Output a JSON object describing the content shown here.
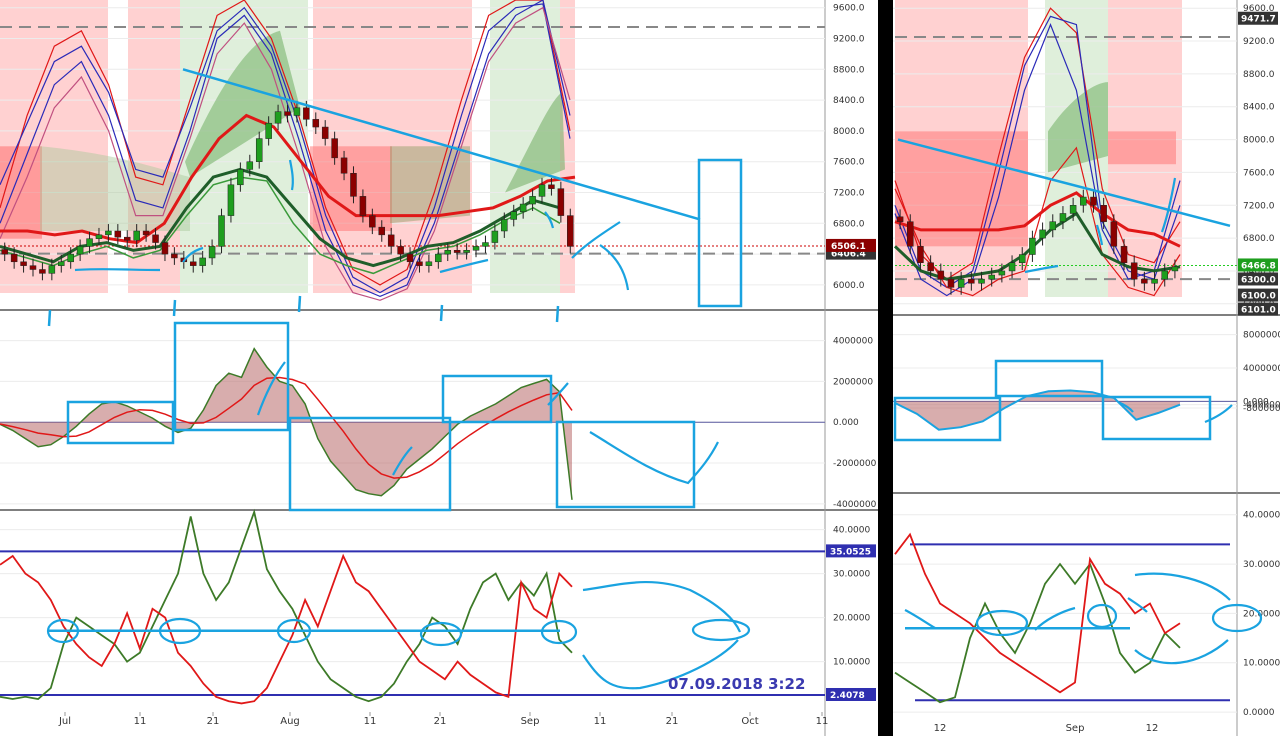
{
  "colors": {
    "background": "#ffffff",
    "separator": "#000000",
    "bull_candle": "#1e9e1e",
    "bear_candle": "#8b0000",
    "ema_red": "#e01818",
    "ema_blue": "#2a2ab8",
    "kijun_dark": "#1f5e2a",
    "annotation": "#1aa3e0",
    "zone_red": "#ff9a9a",
    "zone_green": "#b9dcb0",
    "level_blue": "#2f2fb0",
    "dmi_green": "#3d7a28",
    "dmi_red": "#e01818",
    "osc_fill": "#b86a6a",
    "timestamp_text": "#3a3ab0"
  },
  "annotation_text": "07.09.2018   3:22",
  "chart_data": [
    {
      "id": "left-price",
      "type": "candlestick",
      "ylim": [
        5700,
        9700
      ],
      "y_ticks": [
        "9600.0",
        "9200.0",
        "8800.0",
        "8400.0",
        "8000.0",
        "7600.0",
        "7200.0",
        "6800.0",
        "6400.0",
        "6000.0"
      ],
      "price_tags": [
        {
          "label": "6406.4",
          "bg": "#333333"
        },
        {
          "label": "6506.1",
          "bg": "#8b0000"
        }
      ],
      "candles_close": [
        6400,
        6300,
        6250,
        6200,
        6150,
        6250,
        6300,
        6400,
        6500,
        6600,
        6650,
        6700,
        6620,
        6580,
        6700,
        6650,
        6550,
        6400,
        6350,
        6300,
        6250,
        6350,
        6500,
        6900,
        7300,
        7500,
        7600,
        7900,
        8100,
        8250,
        8200,
        8300,
        8150,
        8050,
        7900,
        7650,
        7450,
        7150,
        6900,
        6750,
        6650,
        6500,
        6400,
        6300,
        6250,
        6300,
        6400,
        6450,
        6420,
        6450,
        6500,
        6550,
        6700,
        6850,
        6950,
        7050,
        7150,
        7300,
        7250,
        6900,
        6500
      ],
      "x_labels": [
        "Jul",
        "11",
        "21",
        "Aug",
        "11",
        "21",
        "Sep",
        "11",
        "21",
        "Oct",
        "11"
      ]
    },
    {
      "id": "left-macd",
      "type": "area",
      "ylim": [
        -4300000,
        5400000
      ],
      "y_ticks": [
        "4000000",
        "2000000",
        "0.000",
        "-2000000",
        "-4000000"
      ],
      "values": [
        -0.1,
        -0.4,
        -0.8,
        -1.2,
        -1.1,
        -0.7,
        -0.2,
        0.4,
        0.9,
        1.0,
        0.8,
        0.5,
        0.2,
        -0.2,
        -0.5,
        -0.3,
        0.6,
        1.8,
        2.4,
        2.2,
        3.6,
        2.7,
        2.0,
        1.8,
        0.9,
        -0.8,
        -1.9,
        -2.6,
        -3.3,
        -3.5,
        -3.6,
        -3.1,
        -2.3,
        -1.8,
        -1.3,
        -0.7,
        -0.1,
        0.3,
        0.6,
        0.9,
        1.3,
        1.7,
        1.9,
        2.1,
        1.5,
        -3.8
      ]
    },
    {
      "id": "left-dmi",
      "type": "line",
      "ylim": [
        -1,
        44
      ],
      "y_ticks": [
        "40.0000",
        "30.0000",
        "20.0000",
        "10.0000"
      ],
      "levels": [
        {
          "label": "35.0525",
          "value": 35.05
        },
        {
          "label": "2.4078",
          "value": 2.41
        }
      ],
      "series": [
        {
          "key": "green",
          "values": [
            2,
            1.5,
            2,
            1.5,
            4,
            14,
            20,
            18,
            16,
            14,
            10,
            12,
            18,
            24,
            30,
            43,
            30,
            24,
            28,
            36,
            44,
            31,
            26,
            22,
            16,
            10,
            6,
            4,
            2,
            1,
            2,
            5,
            10,
            14,
            20,
            18,
            14,
            22,
            28,
            30,
            24,
            28,
            25,
            30,
            15,
            12
          ]
        },
        {
          "key": "red",
          "values": [
            32,
            34,
            30,
            28,
            24,
            18,
            14,
            11,
            9,
            14,
            21,
            13,
            22,
            20,
            12,
            9,
            5,
            2,
            1,
            0.5,
            1,
            4,
            10,
            16,
            24,
            18,
            26,
            34,
            28,
            26,
            22,
            18,
            14,
            10,
            8,
            6,
            10,
            7,
            5,
            3,
            2,
            28,
            22,
            20,
            30,
            27
          ]
        }
      ]
    },
    {
      "id": "right-price",
      "type": "candlestick",
      "ylim": [
        5900,
        9700
      ],
      "y_ticks": [
        "9600.0",
        "9200.0",
        "8800.0",
        "8400.0",
        "8000.0",
        "7600.0",
        "7200.0",
        "6800.0",
        "6400.0",
        "6000.0"
      ],
      "price_tags": [
        {
          "label": "9471.7",
          "bg": "#333333"
        },
        {
          "label": "6466.8",
          "bg": "#1e9e1e"
        },
        {
          "label": "6300.0",
          "bg": "#333333"
        },
        {
          "label": "6100.0",
          "bg": "#333333"
        },
        {
          "label": "6101.0",
          "bg": "#333333"
        }
      ],
      "candles_close": [
        7000,
        6700,
        6500,
        6400,
        6300,
        6200,
        6300,
        6250,
        6300,
        6350,
        6400,
        6500,
        6600,
        6800,
        6900,
        7000,
        7100,
        7200,
        7300,
        7200,
        7000,
        6700,
        6500,
        6300,
        6250,
        6300,
        6400,
        6450
      ],
      "x_labels": [
        "12",
        "Sep",
        "12"
      ]
    },
    {
      "id": "right-macd",
      "type": "area",
      "ylim": [
        -11000000,
        10000000
      ],
      "y_ticks": [
        "8000000",
        "4000000",
        "0.000",
        "-400000",
        "-800000"
      ],
      "values": [
        -0.2,
        -1.5,
        -3.4,
        -3.1,
        -2.4,
        -0.8,
        0.6,
        1.2,
        1.3,
        1.1,
        0.4,
        -2.2,
        -1.4,
        -0.4
      ]
    },
    {
      "id": "right-dmi",
      "type": "line",
      "ylim": [
        -1,
        44
      ],
      "y_ticks": [
        "40.0000",
        "30.0000",
        "20.0000",
        "10.0000",
        "0.0000"
      ],
      "series": [
        {
          "key": "green",
          "values": [
            8,
            6,
            4,
            2,
            3,
            15,
            22,
            16,
            12,
            18,
            26,
            30,
            26,
            30,
            22,
            12,
            8,
            10,
            16,
            13
          ]
        },
        {
          "key": "red",
          "values": [
            32,
            36,
            28,
            22,
            20,
            18,
            15,
            12,
            10,
            8,
            6,
            4,
            6,
            31,
            26,
            24,
            20,
            22,
            16,
            18
          ]
        }
      ]
    }
  ]
}
